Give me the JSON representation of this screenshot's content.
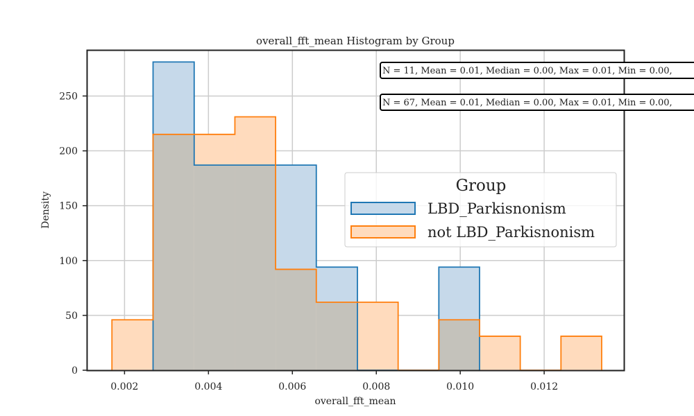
{
  "chart_data": {
    "type": "histogram",
    "title": "overall_fft_mean Histogram by Group",
    "xlabel": "overall_fft_mean",
    "ylabel": "Density",
    "xlim": [
      0.0011,
      0.0139
    ],
    "ylim": [
      0,
      292
    ],
    "xticks": [
      0.002,
      0.004,
      0.006,
      0.008,
      0.01,
      0.012
    ],
    "xtick_labels": [
      "0.002",
      "0.004",
      "0.006",
      "0.008",
      "0.010",
      "0.012"
    ],
    "yticks": [
      0,
      50,
      100,
      150,
      200,
      250
    ],
    "ytick_labels": [
      "0",
      "50",
      "100",
      "150",
      "200",
      "250"
    ],
    "grid": true,
    "legend": {
      "title": "Group",
      "placement": "center-right"
    },
    "series": [
      {
        "name": "LBD_Parkisnonism",
        "edge_color": "#1f77b4",
        "fill_color": "#c6d9ea",
        "bins": [
          {
            "x0": 0.00268,
            "x1": 0.00366,
            "y": 281
          },
          {
            "x0": 0.00366,
            "x1": 0.00463,
            "y": 187
          },
          {
            "x0": 0.00463,
            "x1": 0.0056,
            "y": 187
          },
          {
            "x0": 0.0056,
            "x1": 0.00657,
            "y": 187
          },
          {
            "x0": 0.00657,
            "x1": 0.00755,
            "y": 94
          },
          {
            "x0": 0.00755,
            "x1": 0.00852,
            "y": 0
          },
          {
            "x0": 0.00852,
            "x1": 0.00949,
            "y": 0
          },
          {
            "x0": 0.00949,
            "x1": 0.01046,
            "y": 94
          }
        ]
      },
      {
        "name": "not LBD_Parkisnonism",
        "edge_color": "#ff7f0e",
        "fill_color": "#ffdbbd",
        "bins": [
          {
            "x0": 0.0017,
            "x1": 0.00268,
            "y": 46
          },
          {
            "x0": 0.00268,
            "x1": 0.00366,
            "y": 215
          },
          {
            "x0": 0.00366,
            "x1": 0.00463,
            "y": 215
          },
          {
            "x0": 0.00463,
            "x1": 0.0056,
            "y": 231
          },
          {
            "x0": 0.0056,
            "x1": 0.00657,
            "y": 92
          },
          {
            "x0": 0.00657,
            "x1": 0.00755,
            "y": 62
          },
          {
            "x0": 0.00755,
            "x1": 0.00852,
            "y": 62
          },
          {
            "x0": 0.00852,
            "x1": 0.00949,
            "y": 0
          },
          {
            "x0": 0.00949,
            "x1": 0.01046,
            "y": 46
          },
          {
            "x0": 0.01046,
            "x1": 0.01143,
            "y": 31
          },
          {
            "x0": 0.01143,
            "x1": 0.0124,
            "y": 0
          },
          {
            "x0": 0.0124,
            "x1": 0.01337,
            "y": 31
          }
        ]
      }
    ],
    "overlap_color": "#c4c2bb",
    "annotations": [
      "N = 11, Mean = 0.01, Median = 0.00, Max = 0.01, Min = 0.00,",
      "N = 67, Mean = 0.01, Median = 0.00, Max = 0.01, Min = 0.00,"
    ]
  }
}
